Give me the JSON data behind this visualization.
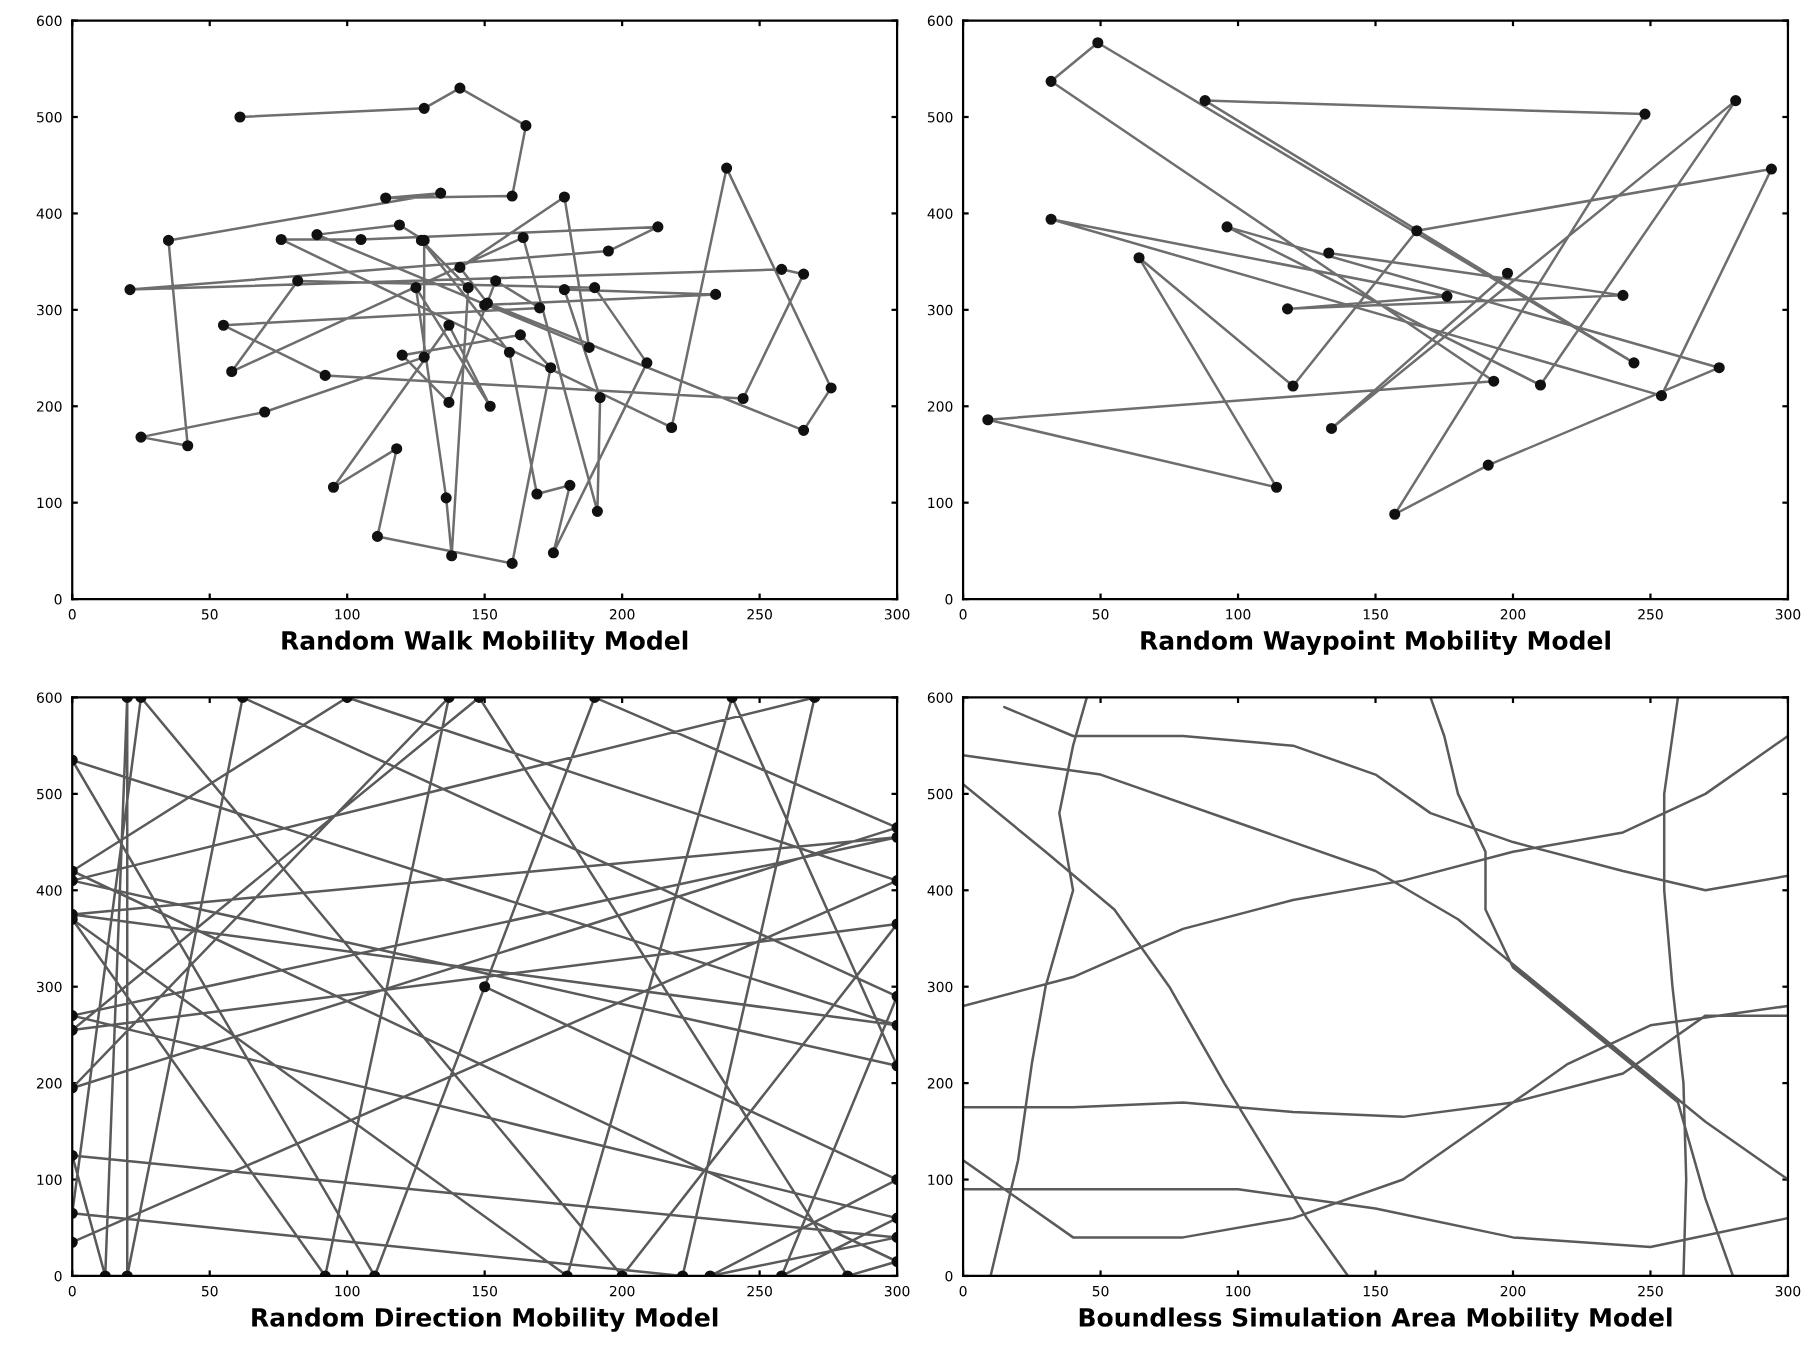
{
  "chart_data": [
    {
      "type": "line",
      "xlabel": "Random Walk Mobility Model",
      "marker": "circle",
      "line_style": "solid",
      "grid": false,
      "xlim": [
        0,
        300
      ],
      "ylim": [
        0,
        600
      ],
      "xticks": [
        0,
        50,
        100,
        150,
        200,
        250,
        300
      ],
      "yticks": [
        0,
        100,
        200,
        300,
        400,
        500,
        600
      ],
      "series": [
        {
          "color": "#6e6e6e",
          "x": [
            61,
            128,
            141,
            165,
            160,
            114,
            134,
            35,
            42,
            25,
            70,
            128,
            128,
            119,
            89,
            188,
            179,
            141,
            151,
            266,
            276,
            238,
            218,
            76,
            105,
            213,
            195,
            21,
            258,
            266,
            244,
            92,
            55,
            170,
            154,
            137,
            120,
            163,
            174,
            160,
            111,
            118,
            95,
            137,
            152,
            125,
            136,
            138,
            144,
            127,
            159,
            169,
            181,
            175,
            209,
            190,
            82,
            58,
            164,
            191,
            192,
            179,
            234,
            150
          ],
          "values": [
            500,
            509,
            530,
            491,
            418,
            416,
            421,
            372,
            159,
            168,
            194,
            251,
            372,
            388,
            378,
            261,
            417,
            344,
            307,
            175,
            219,
            447,
            178,
            373,
            373,
            386,
            361,
            321,
            342,
            337,
            208,
            232,
            284,
            302,
            330,
            204,
            253,
            274,
            240,
            37,
            65,
            156,
            116,
            284,
            200,
            323,
            105,
            45,
            323,
            372,
            256,
            109,
            118,
            48,
            245,
            323,
            330,
            236,
            375,
            91,
            209,
            321,
            316,
            305
          ]
        }
      ]
    },
    {
      "type": "line",
      "xlabel": "Random Waypoint Mobility Model",
      "marker": "circle",
      "line_style": "solid",
      "grid": false,
      "xlim": [
        0,
        300
      ],
      "ylim": [
        0,
        600
      ],
      "xticks": [
        0,
        50,
        100,
        150,
        200,
        250,
        300
      ],
      "yticks": [
        0,
        100,
        200,
        300,
        400,
        500,
        600
      ],
      "series": [
        {
          "color": "#6e6e6e",
          "x": [
            133,
            240,
            118,
            176,
            32,
            254,
            294,
            165,
            120,
            64,
            114,
            9,
            193,
            32,
            49,
            244,
            88,
            248,
            157,
            191,
            275,
            96,
            210,
            281,
            134,
            198
          ],
          "values": [
            359,
            315,
            301,
            314,
            394,
            211,
            446,
            382,
            221,
            354,
            116,
            186,
            226,
            537,
            577,
            245,
            517,
            503,
            88,
            139,
            240,
            386,
            222,
            517,
            177,
            338
          ]
        }
      ]
    },
    {
      "type": "line",
      "xlabel": "Random Direction Mobility Model",
      "marker": "circle",
      "line_style": "solid",
      "grid": false,
      "xlim": [
        0,
        300
      ],
      "ylim": [
        0,
        600
      ],
      "xticks": [
        0,
        50,
        100,
        150,
        200,
        250,
        300
      ],
      "yticks": [
        0,
        100,
        200,
        300,
        400,
        500,
        600
      ],
      "series": [
        {
          "color": "#5a5a5a",
          "x": [
            150,
            300,
            232,
            300,
            0,
            12,
            20,
            20,
            62,
            300,
            258,
            300,
            0,
            300,
            0,
            300,
            0,
            110,
            190,
            300,
            0,
            137,
            92,
            0,
            180,
            240,
            300,
            0,
            270,
            222,
            0,
            25,
            200,
            300,
            0,
            148,
            282,
            300,
            0,
            100,
            300,
            0
          ],
          "values": [
            300,
            100,
            0,
            40,
            125,
            0,
            600,
            0,
            600,
            290,
            0,
            60,
            270,
            455,
            375,
            260,
            535,
            0,
            600,
            465,
            195,
            600,
            0,
            370,
            0,
            600,
            218,
            410,
            600,
            0,
            65,
            600,
            0,
            365,
            255,
            600,
            0,
            15,
            420,
            600,
            410,
            35
          ]
        }
      ]
    },
    {
      "type": "line",
      "xlabel": "Boundless Simulation Area Mobility Model",
      "line_style": "solid",
      "grid": false,
      "xlim": [
        0,
        300
      ],
      "ylim": [
        0,
        600
      ],
      "xticks": [
        0,
        50,
        100,
        150,
        200,
        250,
        300
      ],
      "yticks": [
        0,
        100,
        200,
        300,
        400,
        500,
        600
      ],
      "series": [
        {
          "color": "#5a5a5a",
          "x": [
            0,
            30,
            55,
            75,
            95,
            110,
            125,
            140,
            null,
            0,
            40,
            80,
            120,
            160,
            200,
            240,
            270,
            300,
            null,
            0,
            40,
            80,
            120,
            160,
            200,
            240,
            270,
            300,
            null,
            15,
            40,
            80,
            120,
            150,
            170,
            200,
            240,
            270,
            300,
            null,
            0,
            20,
            40,
            80,
            120,
            160,
            190,
            220,
            250,
            300,
            null,
            170,
            175,
            180,
            190,
            190,
            200,
            230,
            260,
            270,
            280,
            null,
            45,
            40,
            35,
            40,
            30,
            25,
            20,
            10,
            null,
            0,
            50,
            100,
            150,
            200,
            250,
            300,
            null,
            260,
            255,
            255,
            258,
            262,
            263,
            262,
            null,
            0,
            50,
            100,
            150,
            180,
            210,
            240,
            270,
            300
          ],
          "values": [
            510,
            440,
            380,
            300,
            200,
            130,
            60,
            0,
            null,
            280,
            310,
            360,
            390,
            410,
            440,
            460,
            500,
            560,
            null,
            175,
            175,
            180,
            170,
            165,
            180,
            210,
            270,
            270,
            null,
            590,
            560,
            560,
            550,
            520,
            480,
            450,
            420,
            400,
            415,
            null,
            120,
            80,
            40,
            40,
            60,
            100,
            160,
            220,
            260,
            280,
            null,
            600,
            560,
            500,
            440,
            380,
            320,
            250,
            180,
            80,
            0,
            null,
            600,
            550,
            480,
            400,
            300,
            220,
            120,
            0,
            null,
            90,
            90,
            90,
            70,
            40,
            30,
            60,
            null,
            600,
            500,
            400,
            300,
            200,
            100,
            0,
            null,
            540,
            520,
            470,
            420,
            370,
            300,
            230,
            160,
            100
          ]
        }
      ]
    }
  ]
}
